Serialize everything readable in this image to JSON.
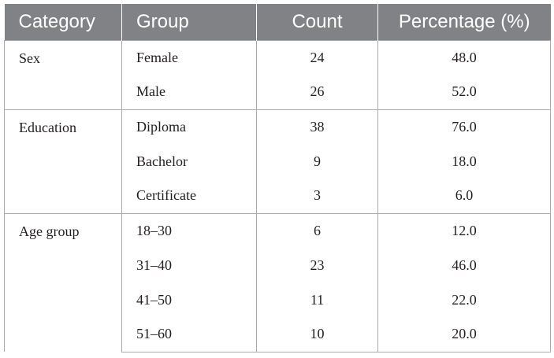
{
  "table": {
    "headers": [
      "Category",
      "Group",
      "Count",
      "Percentage (%)"
    ],
    "sections": [
      {
        "category": "Sex",
        "rows": [
          {
            "group": "Female",
            "count": "24",
            "percentage": "48.0"
          },
          {
            "group": "Male",
            "count": "26",
            "percentage": "52.0"
          }
        ]
      },
      {
        "category": "Education",
        "rows": [
          {
            "group": "Diploma",
            "count": "38",
            "percentage": "76.0"
          },
          {
            "group": "Bachelor",
            "count": "9",
            "percentage": "18.0"
          },
          {
            "group": "Certificate",
            "count": "3",
            "percentage": "6.0"
          }
        ]
      },
      {
        "category": "Age group",
        "rows": [
          {
            "group": "18–30",
            "count": "6",
            "percentage": "12.0"
          },
          {
            "group": "31–40",
            "count": "23",
            "percentage": "46.0"
          },
          {
            "group": "41–50",
            "count": "11",
            "percentage": "22.0"
          },
          {
            "group": "51–60",
            "count": "10",
            "percentage": "20.0"
          }
        ]
      }
    ]
  }
}
